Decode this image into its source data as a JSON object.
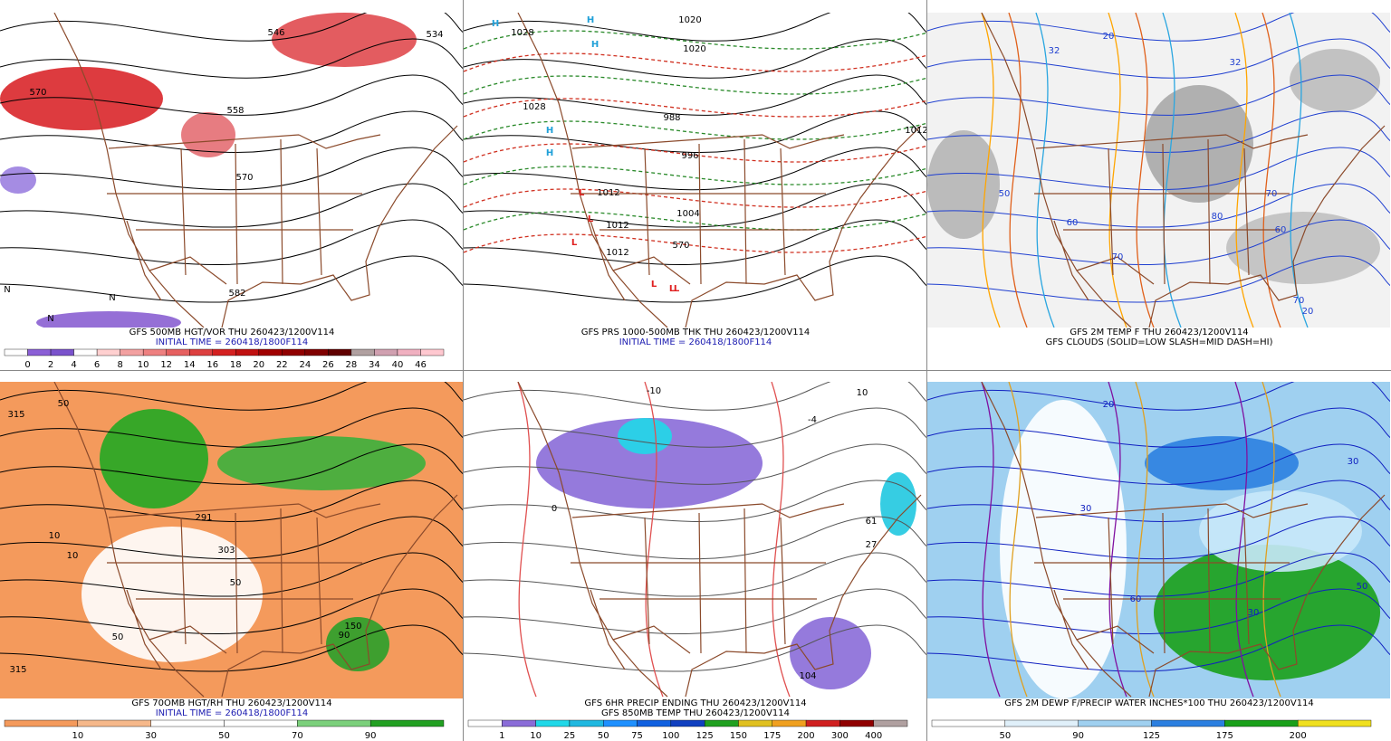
{
  "panels": [
    {
      "caption": [
        "GFS 500MB HGT/VOR THU 260423/1200V114",
        "INITIAL TIME = 260418/1800F114"
      ],
      "colorbar": [
        "0",
        "2",
        "4",
        "6",
        "8",
        "10",
        "12",
        "14",
        "16",
        "18",
        "20",
        "22",
        "24",
        "26",
        "28",
        "34",
        "40",
        "46"
      ],
      "labels": [
        "570",
        "558",
        "546",
        "534",
        "570",
        "582",
        "N",
        "N",
        "N"
      ]
    },
    {
      "caption": [
        "GFS PRS 1000-500MB THK THU 260423/1200V114",
        "INITIAL TIME = 260418/1800F114"
      ],
      "colorbar": [],
      "labels": [
        "1028",
        "1020",
        "1028",
        "1020",
        "988",
        "996",
        "1004",
        "1012",
        "1012",
        "1012",
        "1012",
        "570",
        "H",
        "H",
        "H",
        "H",
        "H",
        "L",
        "L",
        "L",
        "L",
        "L",
        "L"
      ]
    },
    {
      "caption": [
        "GFS 2M TEMP F THU 260423/1200V114",
        "GFS CLOUDS (SOLID=LOW SLASH=MID DASH=HI)"
      ],
      "colorbar": [],
      "labels": [
        "32",
        "32",
        "20",
        "50",
        "60",
        "70",
        "80",
        "70",
        "60",
        "70",
        "20"
      ]
    },
    {
      "caption": [
        "GFS 70OMB HGT/RH THU 260423/1200V114",
        "INITIAL TIME = 260418/1800F114"
      ],
      "colorbar": [
        "10",
        "30",
        "50",
        "70",
        "90"
      ],
      "labels": [
        "315",
        "50",
        "10",
        "10",
        "291",
        "303",
        "50",
        "50",
        "90",
        "150",
        "315"
      ]
    },
    {
      "caption": [
        "GFS 6HR PRECIP ENDING THU 260423/1200V114",
        "GFS 850MB TEMP THU 260423/1200V114"
      ],
      "colorbar": [
        "1",
        "10",
        "25",
        "50",
        "75",
        "100",
        "125",
        "150",
        "175",
        "200",
        "300",
        "400"
      ],
      "labels": [
        "-10",
        "-4",
        "61",
        "27",
        "104",
        "0",
        "10"
      ]
    },
    {
      "caption": [
        "GFS 2M DEWP F/PRECIP WATER INCHES*100 THU 260423/1200V114"
      ],
      "colorbar": [
        "50",
        "90",
        "125",
        "175",
        "200"
      ],
      "labels": [
        "30",
        "30",
        "50",
        "20",
        "60",
        "30"
      ]
    }
  ]
}
